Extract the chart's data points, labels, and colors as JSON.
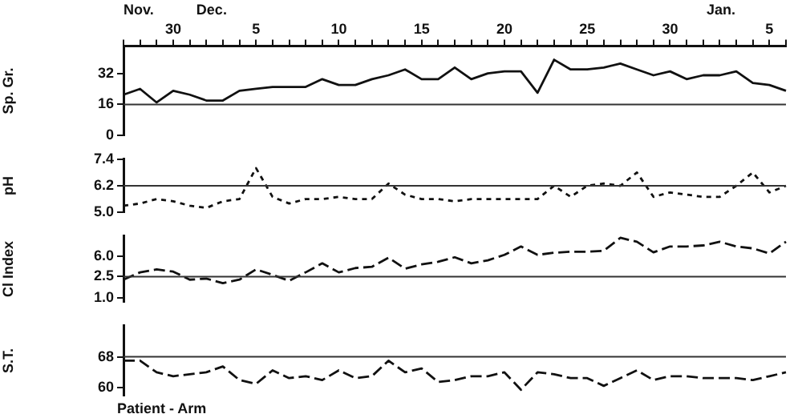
{
  "chart_data": [
    {
      "type": "line",
      "ylabel": "Sp. Gr.",
      "categories": [
        null,
        null,
        null,
        "30",
        null,
        null,
        null,
        null,
        "5",
        null,
        null,
        null,
        null,
        "10",
        null,
        null,
        null,
        null,
        "15",
        null,
        null,
        null,
        null,
        "20",
        null,
        null,
        null,
        null,
        "25",
        null,
        null,
        null,
        null,
        "30",
        null,
        null,
        null,
        null,
        null,
        "5",
        null
      ],
      "series": [
        {
          "color": "#111111",
          "values": [
            21,
            24,
            17,
            23,
            21,
            18,
            18,
            23,
            24,
            25,
            25,
            25,
            29,
            26,
            26,
            29,
            31,
            34,
            29,
            29,
            35,
            29,
            32,
            33,
            33,
            22,
            39,
            34,
            34,
            35,
            37,
            34,
            31,
            33,
            29,
            31,
            31,
            33,
            27,
            26,
            23
          ]
        }
      ],
      "line_style": "solid",
      "grid": false,
      "legend": false,
      "ylim": [
        0,
        46
      ],
      "yticks": [
        0,
        16,
        32
      ],
      "ref_lines": [
        {
          "axis": "y",
          "value": 16
        }
      ],
      "annotations": [
        "Nov.",
        "Dec.",
        "Jan."
      ]
    },
    {
      "type": "line",
      "ylabel": "pH",
      "categories": [
        null,
        null,
        null,
        "30",
        null,
        null,
        null,
        null,
        "5",
        null,
        null,
        null,
        null,
        "10",
        null,
        null,
        null,
        null,
        "15",
        null,
        null,
        null,
        null,
        "20",
        null,
        null,
        null,
        null,
        "25",
        null,
        null,
        null,
        null,
        "30",
        null,
        null,
        null,
        null,
        null,
        "5",
        null
      ],
      "series": [
        {
          "color": "#111111",
          "values": [
            5.3,
            5.4,
            5.6,
            5.5,
            5.3,
            5.2,
            5.5,
            5.6,
            7.0,
            5.7,
            5.4,
            5.6,
            5.6,
            5.7,
            5.6,
            5.6,
            6.3,
            5.8,
            5.6,
            5.6,
            5.5,
            5.6,
            5.6,
            5.6,
            5.6,
            5.6,
            6.2,
            5.7,
            6.2,
            6.3,
            6.2,
            6.8,
            5.7,
            5.9,
            5.8,
            5.7,
            5.7,
            6.2,
            6.8,
            5.9,
            6.2
          ]
        }
      ],
      "line_style": "dotted",
      "grid": false,
      "legend": false,
      "tick_labels": "y",
      "ylim": [
        5.0,
        7.4
      ],
      "yticks": [
        {
          "value": 5,
          "label": "5.0"
        },
        6.2,
        7.4
      ],
      "ref_lines": [
        {
          "axis": "y",
          "value": 6.2
        }
      ]
    },
    {
      "type": "line",
      "ylabel": "Cl Index",
      "log": true,
      "categories": [
        null,
        null,
        null,
        "30",
        null,
        null,
        null,
        null,
        "5",
        null,
        null,
        null,
        null,
        "10",
        null,
        null,
        null,
        null,
        "15",
        null,
        null,
        null,
        null,
        "20",
        null,
        null,
        null,
        null,
        "25",
        null,
        null,
        null,
        null,
        "30",
        null,
        null,
        null,
        null,
        null,
        "5",
        null
      ],
      "series": [
        {
          "color": "#111111",
          "values": [
            2.2,
            3.0,
            3.4,
            3.1,
            2.2,
            2.3,
            1.9,
            2.2,
            3.4,
            2.7,
            2.1,
            3.0,
            4.4,
            3.0,
            3.6,
            3.8,
            5.6,
            3.5,
            4.2,
            4.7,
            5.7,
            4.4,
            5.0,
            6.3,
            9.0,
            6.3,
            6.9,
            7.2,
            7.2,
            7.5,
            13,
            11,
            7.0,
            9.0,
            9.0,
            9.4,
            11,
            9.0,
            8.3,
            6.7,
            11
          ]
        }
      ],
      "line_style": "dashed",
      "grid": false,
      "legend": false,
      "tick_labels": "y",
      "ylim": [
        0.85,
        14
      ],
      "yticks": [
        {
          "value": 1,
          "label": "1.0"
        },
        2.5,
        {
          "value": 6,
          "label": "6.0"
        }
      ],
      "ref_lines": [
        {
          "axis": "y",
          "value": 2.5
        }
      ]
    },
    {
      "type": "line",
      "ylabel": "S.T.",
      "categories": [
        null,
        null,
        null,
        "30",
        null,
        null,
        null,
        null,
        "5",
        null,
        null,
        null,
        null,
        "10",
        null,
        null,
        null,
        null,
        "15",
        null,
        null,
        null,
        null,
        "20",
        null,
        null,
        null,
        null,
        "25",
        null,
        null,
        null,
        null,
        "30",
        null,
        null,
        null,
        null,
        null,
        "5",
        null
      ],
      "series": [
        {
          "color": "#111111",
          "values": [
            67,
            67,
            64,
            63,
            63.5,
            64,
            65.5,
            62,
            61,
            64.5,
            62.5,
            63,
            62,
            64.5,
            62.5,
            63,
            67,
            64,
            65,
            61.5,
            62,
            63,
            63,
            64,
            59.5,
            64,
            63.5,
            62.5,
            62.5,
            60.5,
            62.5,
            64.5,
            62,
            63,
            63,
            62.5,
            62.5,
            62.5,
            62,
            63,
            64
          ]
        }
      ],
      "line_style": "dashed",
      "grid": false,
      "legend": false,
      "tick_labels": "y",
      "ylim": [
        58,
        76
      ],
      "yticks": [
        60,
        68
      ],
      "ref_lines": [
        {
          "axis": "y",
          "value": 68
        }
      ],
      "annotations": [
        "Patient - Arm"
      ]
    }
  ]
}
